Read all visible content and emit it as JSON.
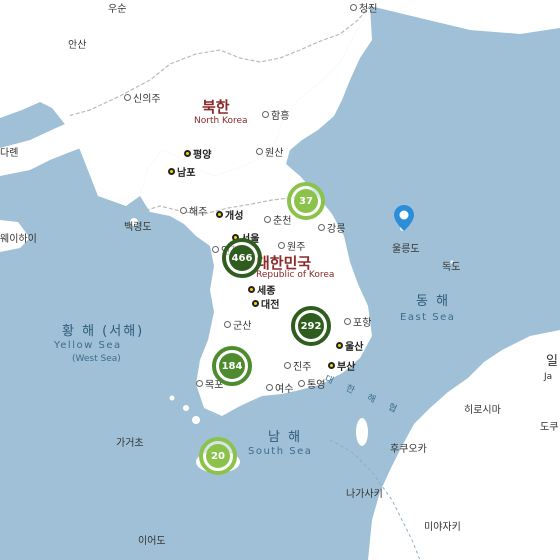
{
  "map": {
    "countries": {
      "north_korea": {
        "name_ko": "북한",
        "name_en": "North Korea"
      },
      "south_korea": {
        "name_ko": "대한민국",
        "name_en": "Republic of Korea"
      }
    },
    "seas": {
      "yellow_sea": {
        "name_ko": "황 해 (서해)",
        "name_en": "Yellow Sea",
        "name_en_alt": "(West Sea)"
      },
      "east_sea": {
        "name_ko": "동 해",
        "name_en": "East Sea"
      },
      "south_sea": {
        "name_ko": "남 해",
        "name_en": "South Sea"
      },
      "korea_strait": {
        "name_ko": "대 한 해 협"
      }
    },
    "cities": {
      "pyongyang": "평양",
      "nampo": "남포",
      "kaesong": "개성",
      "seoul": "서울",
      "incheon": "인천",
      "sejong": "세종",
      "daejeon": "대전",
      "ulsan": "울산",
      "busan": "부산",
      "sinuiju": "신의주",
      "hamhung": "함흥",
      "wonsan": "원산",
      "haeju": "해주",
      "chuncheon": "춘천",
      "gangneung": "강릉",
      "wonju": "원주",
      "gunsan": "군산",
      "pohang": "포항",
      "jinju": "진주",
      "yeosu": "여수",
      "tongyeong": "통영",
      "mokpo": "목포",
      "chongjin": "청진",
      "hiroshima": "히로시마",
      "fukuoka": "후쿠오카",
      "nagasaki": "나가사키",
      "miyazaki": "미야자키"
    },
    "places": {
      "usun": "우순",
      "andong_cn": "안산",
      "dalian": "다롄",
      "weihai": "웨이하이",
      "baengnyeong": "백령도",
      "ulleungdo": "울릉도",
      "dokdo": "독도",
      "gagecho": "가거초",
      "ieodo": "이어도",
      "japan_ko": "일",
      "japan_en": "Ja",
      "dogu": "도쿠"
    },
    "clusters": [
      {
        "id": "gangwon",
        "count": "37"
      },
      {
        "id": "seoul",
        "count": "466"
      },
      {
        "id": "gyeongbuk",
        "count": "292"
      },
      {
        "id": "gwangju",
        "count": "184"
      },
      {
        "id": "jeju",
        "count": "20"
      }
    ],
    "marker": {
      "label": "울릉도"
    },
    "colors": {
      "sea": "#9fc0d6",
      "land": "#ffffff",
      "cluster_light": "#8bc34a",
      "cluster_dark": "#2e5d1e",
      "marker": "#2a8fd8",
      "country_label": "#8b2a2a"
    }
  }
}
